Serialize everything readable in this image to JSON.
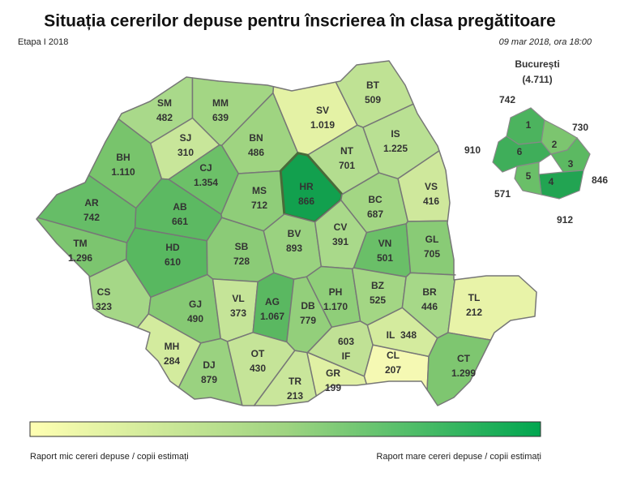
{
  "header": {
    "title": "Situația cererilor depuse pentru înscrierea în clasa pregătitoare",
    "stage": "Etapa I 2018",
    "date": "09 mar 2018, ora 18:00"
  },
  "counties": [
    {
      "code": "SM",
      "value": "482",
      "color": "#a9d98a"
    },
    {
      "code": "MM",
      "value": "639",
      "color": "#a3d684"
    },
    {
      "code": "SJ",
      "value": "310",
      "color": "#c8e69a"
    },
    {
      "code": "BN",
      "value": "486",
      "color": "#9fd481"
    },
    {
      "code": "SV",
      "value": "1.019",
      "color": "#e4f2a5"
    },
    {
      "code": "BT",
      "value": "509",
      "color": "#bfe294"
    },
    {
      "code": "BH",
      "value": "1.110",
      "color": "#78c46c"
    },
    {
      "code": "CJ",
      "value": "1.354",
      "color": "#6cc068"
    },
    {
      "code": "NT",
      "value": "701",
      "color": "#b3dd8f"
    },
    {
      "code": "IS",
      "value": "1.225",
      "color": "#b9e093"
    },
    {
      "code": "AR",
      "value": "742",
      "color": "#66bd67"
    },
    {
      "code": "AB",
      "value": "661",
      "color": "#5cb962"
    },
    {
      "code": "MS",
      "value": "712",
      "color": "#8fcd79"
    },
    {
      "code": "HR",
      "value": "866",
      "color": "#12a04e"
    },
    {
      "code": "BC",
      "value": "687",
      "color": "#a3d684"
    },
    {
      "code": "VS",
      "value": "416",
      "color": "#cfe89c"
    },
    {
      "code": "TM",
      "value": "1.296",
      "color": "#7cc56f"
    },
    {
      "code": "HD",
      "value": "610",
      "color": "#58b860"
    },
    {
      "code": "SB",
      "value": "728",
      "color": "#8bcb77"
    },
    {
      "code": "BV",
      "value": "893",
      "color": "#9ad280"
    },
    {
      "code": "CV",
      "value": "391",
      "color": "#a9d98a"
    },
    {
      "code": "VN",
      "value": "501",
      "color": "#6abf68"
    },
    {
      "code": "GL",
      "value": "705",
      "color": "#89cb76"
    },
    {
      "code": "CS",
      "value": "323",
      "color": "#a5d787"
    },
    {
      "code": "GJ",
      "value": "490",
      "color": "#86c974"
    },
    {
      "code": "VL",
      "value": "373",
      "color": "#c5e498"
    },
    {
      "code": "AG",
      "value": "1.067",
      "color": "#5ab861"
    },
    {
      "code": "DB",
      "value": "779",
      "color": "#93cf7b"
    },
    {
      "code": "PH",
      "value": "1.170",
      "color": "#8fce79"
    },
    {
      "code": "BZ",
      "value": "525",
      "color": "#a3d684"
    },
    {
      "code": "BR",
      "value": "446",
      "color": "#a6d888"
    },
    {
      "code": "TL",
      "value": "212",
      "color": "#e8f3a8"
    },
    {
      "code": "MH",
      "value": "284",
      "color": "#d3eb9e"
    },
    {
      "code": "DJ",
      "value": "879",
      "color": "#9ad280"
    },
    {
      "code": "OT",
      "value": "430",
      "color": "#c5e498"
    },
    {
      "code": "TR",
      "value": "213",
      "color": "#c9e69b"
    },
    {
      "code": "GR",
      "value": "199",
      "color": "#e0f0a4"
    },
    {
      "code": "IF",
      "value": "603",
      "color": "#c0e195"
    },
    {
      "code": "CL",
      "value": "207",
      "color": "#f5f9b3"
    },
    {
      "code": "IL",
      "value": "348",
      "color": "#d4eb9e"
    },
    {
      "code": "CT",
      "value": "1.299",
      "color": "#7ec670"
    }
  ],
  "bucuresti": {
    "title": "București",
    "total": "(4.711)",
    "sectors": [
      {
        "label": "1",
        "value": "742",
        "color": "#4cb35e"
      },
      {
        "label": "2",
        "value": "730",
        "color": "#7cc56f"
      },
      {
        "label": "3",
        "value": "846",
        "color": "#5cb962"
      },
      {
        "label": "4",
        "value": "912",
        "color": "#22a452"
      },
      {
        "label": "5",
        "value": "571",
        "color": "#6abf68"
      },
      {
        "label": "6",
        "value": "910",
        "color": "#3fae5a"
      }
    ]
  },
  "legend": {
    "low": "Raport mic cereri depuse / copii estimați",
    "high": "Raport mare cereri depuse / copii estimați"
  }
}
